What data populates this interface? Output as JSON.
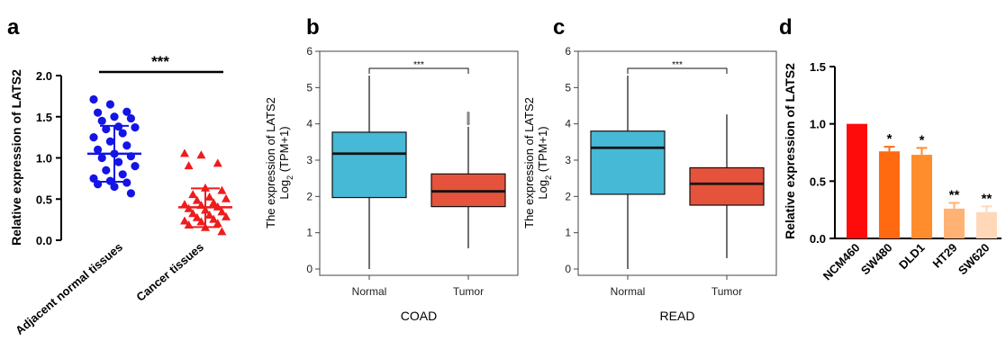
{
  "chart_data": [
    {
      "panel": "a",
      "type": "scatter",
      "ylabel": "Relative expression of LATS2",
      "ylim": [
        0,
        2.0
      ],
      "yticks": [
        "0.0",
        "0.5",
        "1.0",
        "1.5",
        "2.0"
      ],
      "categories": [
        "Adjacent normal tissues",
        "Cancer tissues"
      ],
      "significance": "***",
      "colors": [
        "#1414e6",
        "#ee1c1c"
      ],
      "series": [
        {
          "category": "Adjacent normal tissues",
          "marker": "circle",
          "mean": 1.05,
          "sd_low": 0.71,
          "sd_high": 1.39,
          "values": [
            1.71,
            1.65,
            1.56,
            1.55,
            1.5,
            1.48,
            1.45,
            1.38,
            1.37,
            1.35,
            1.3,
            1.25,
            1.2,
            1.15,
            1.1,
            1.05,
            1.02,
            1.0,
            0.95,
            0.9,
            0.85,
            0.8,
            0.75,
            0.72,
            0.7,
            0.68,
            0.65,
            0.57
          ]
        },
        {
          "category": "Cancer tissues",
          "marker": "triangle",
          "mean": 0.4,
          "sd_low": 0.16,
          "sd_high": 0.63,
          "values": [
            1.05,
            1.03,
            0.93,
            0.9,
            0.63,
            0.6,
            0.55,
            0.52,
            0.5,
            0.48,
            0.45,
            0.43,
            0.42,
            0.4,
            0.38,
            0.36,
            0.34,
            0.32,
            0.3,
            0.28,
            0.27,
            0.25,
            0.23,
            0.22,
            0.2,
            0.18,
            0.15,
            0.1
          ]
        }
      ]
    },
    {
      "panel": "b",
      "type": "box",
      "ylabel_line1": "The expression of LATS2",
      "ylabel_line2_pre": "Log",
      "ylabel_line2_sub": "2",
      "ylabel_line2_post": " (TPM+1)",
      "xlabel": "COAD",
      "ylim": [
        0,
        6
      ],
      "yticks": [
        "0",
        "1",
        "2",
        "3",
        "4",
        "5",
        "6"
      ],
      "categories": [
        "Normal",
        "Tumor"
      ],
      "colors": [
        "#46b9d6",
        "#e5533c"
      ],
      "significance": "***",
      "boxes": [
        {
          "name": "Normal",
          "whisker_low": 0.0,
          "q1": 1.97,
          "median": 3.18,
          "q3": 3.77,
          "whisker_high": 5.33,
          "outliers": []
        },
        {
          "name": "Tumor",
          "whisker_low": 0.57,
          "q1": 1.72,
          "median": 2.14,
          "q3": 2.62,
          "whisker_high": 3.92,
          "outliers": [
            4.0,
            4.05,
            4.1,
            4.15,
            4.2,
            4.25,
            4.3
          ]
        }
      ]
    },
    {
      "panel": "c",
      "type": "box",
      "ylabel_line1": "The expression of LATS2",
      "ylabel_line2_pre": "Log",
      "ylabel_line2_sub": "2",
      "ylabel_line2_post": " (TPM+1)",
      "xlabel": "READ",
      "ylim": [
        0,
        6
      ],
      "yticks": [
        "0",
        "1",
        "2",
        "3",
        "4",
        "5",
        "6"
      ],
      "categories": [
        "Normal",
        "Tumor"
      ],
      "colors": [
        "#46b9d6",
        "#e5533c"
      ],
      "significance": "***",
      "boxes": [
        {
          "name": "Normal",
          "whisker_low": 0.0,
          "q1": 2.06,
          "median": 3.34,
          "q3": 3.8,
          "whisker_high": 5.33,
          "outliers": []
        },
        {
          "name": "Tumor",
          "whisker_low": 0.3,
          "q1": 1.76,
          "median": 2.35,
          "q3": 2.79,
          "whisker_high": 4.26,
          "outliers": []
        }
      ]
    },
    {
      "panel": "d",
      "type": "bar",
      "ylabel": "Relative expression of LATS2",
      "ylim": [
        0,
        1.5
      ],
      "yticks": [
        "0.0",
        "0.5",
        "1.0",
        "1.5"
      ],
      "categories": [
        "NCM460",
        "SW480",
        "DLD1",
        "HT29",
        "SW620"
      ],
      "values": [
        1.0,
        0.76,
        0.73,
        0.26,
        0.23
      ],
      "errors": [
        0.0,
        0.04,
        0.06,
        0.05,
        0.05
      ],
      "significance": [
        "",
        "*",
        "*",
        "**",
        "**"
      ],
      "colors": [
        "#fe0c0c",
        "#ff6a10",
        "#ff8d2c",
        "#ffb274",
        "#ffd8ba"
      ]
    }
  ]
}
